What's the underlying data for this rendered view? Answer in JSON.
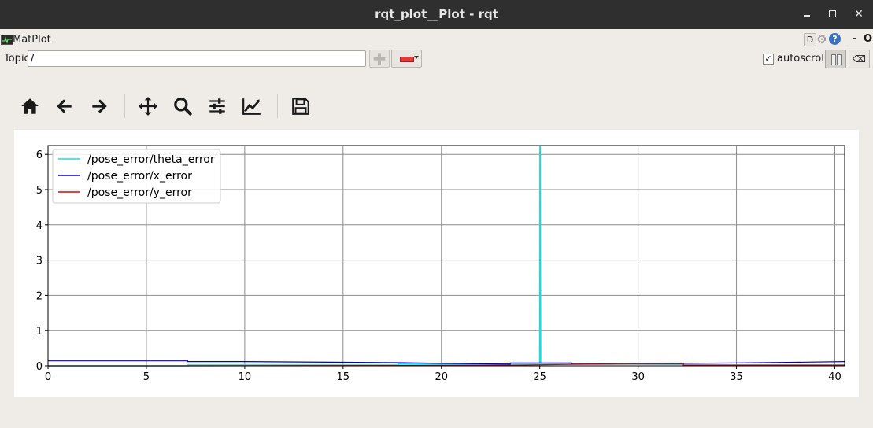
{
  "window": {
    "title": "rqt_plot__Plot - rqt",
    "minimize_icon": "minimize-icon",
    "maximize_icon": "maximize-icon",
    "close_icon": "close-icon"
  },
  "plugin": {
    "title": "MatPlot",
    "d_button": "D",
    "help_label": "?",
    "minus_label": "-",
    "o_label": "O"
  },
  "topic": {
    "label": "Topic",
    "value": "/"
  },
  "autoscroll": {
    "label": "autoscroll",
    "checked": true,
    "check_mark": "✓"
  },
  "toolbar": {
    "icons": [
      "home-icon",
      "back-icon",
      "forward-icon",
      "pan-icon",
      "zoom-icon",
      "configure-subplots-icon",
      "edit-axes-icon",
      "save-icon"
    ]
  },
  "colors": {
    "theta": "#00e5e5",
    "x": "#0000cc",
    "y": "#e00000"
  },
  "chart_data": {
    "type": "line",
    "title": "",
    "xlabel": "",
    "ylabel": "",
    "xlim": [
      0,
      40.5
    ],
    "ylim": [
      0,
      6.25
    ],
    "xticks": [
      0,
      5,
      10,
      15,
      20,
      25,
      30,
      35,
      40
    ],
    "yticks": [
      0,
      1,
      2,
      3,
      4,
      5,
      6
    ],
    "grid": true,
    "legend_location": "upper-left",
    "series": [
      {
        "name": "/pose_error/theta_error",
        "color": "#00e5e5",
        "points": [
          [
            0,
            0.0
          ],
          [
            7.1,
            0.0
          ],
          [
            7.1,
            0.02
          ],
          [
            17.8,
            0.02
          ],
          [
            17.8,
            0.05
          ],
          [
            23.5,
            0.05
          ],
          [
            23.5,
            0.06
          ],
          [
            25.0,
            0.06
          ],
          [
            25.02,
            6.25
          ],
          [
            25.05,
            0.06
          ],
          [
            26.6,
            0.05
          ],
          [
            32.3,
            0.04
          ],
          [
            32.3,
            0.02
          ],
          [
            40.5,
            0.02
          ]
        ]
      },
      {
        "name": "/pose_error/x_error",
        "color": "#0000cc",
        "points": [
          [
            0,
            0.14
          ],
          [
            2,
            0.14
          ],
          [
            5,
            0.14
          ],
          [
            7.1,
            0.14
          ],
          [
            7.1,
            0.12
          ],
          [
            10,
            0.12
          ],
          [
            15,
            0.1
          ],
          [
            17.8,
            0.09
          ],
          [
            20,
            0.07
          ],
          [
            23.5,
            0.05
          ],
          [
            23.5,
            0.08
          ],
          [
            26.6,
            0.08
          ],
          [
            26.6,
            0.05
          ],
          [
            30,
            0.06
          ],
          [
            32.3,
            0.06
          ],
          [
            32.3,
            0.07
          ],
          [
            35,
            0.08
          ],
          [
            38,
            0.1
          ],
          [
            40.5,
            0.12
          ]
        ]
      },
      {
        "name": "/pose_error/y_error",
        "color": "#e00000",
        "points": [
          [
            0,
            0.0
          ],
          [
            7.1,
            0.0
          ],
          [
            17.8,
            0.01
          ],
          [
            23.5,
            0.02
          ],
          [
            26.6,
            0.04
          ],
          [
            30,
            0.06
          ],
          [
            32.3,
            0.07
          ],
          [
            32.3,
            0.02
          ],
          [
            40.5,
            0.02
          ]
        ]
      }
    ]
  }
}
